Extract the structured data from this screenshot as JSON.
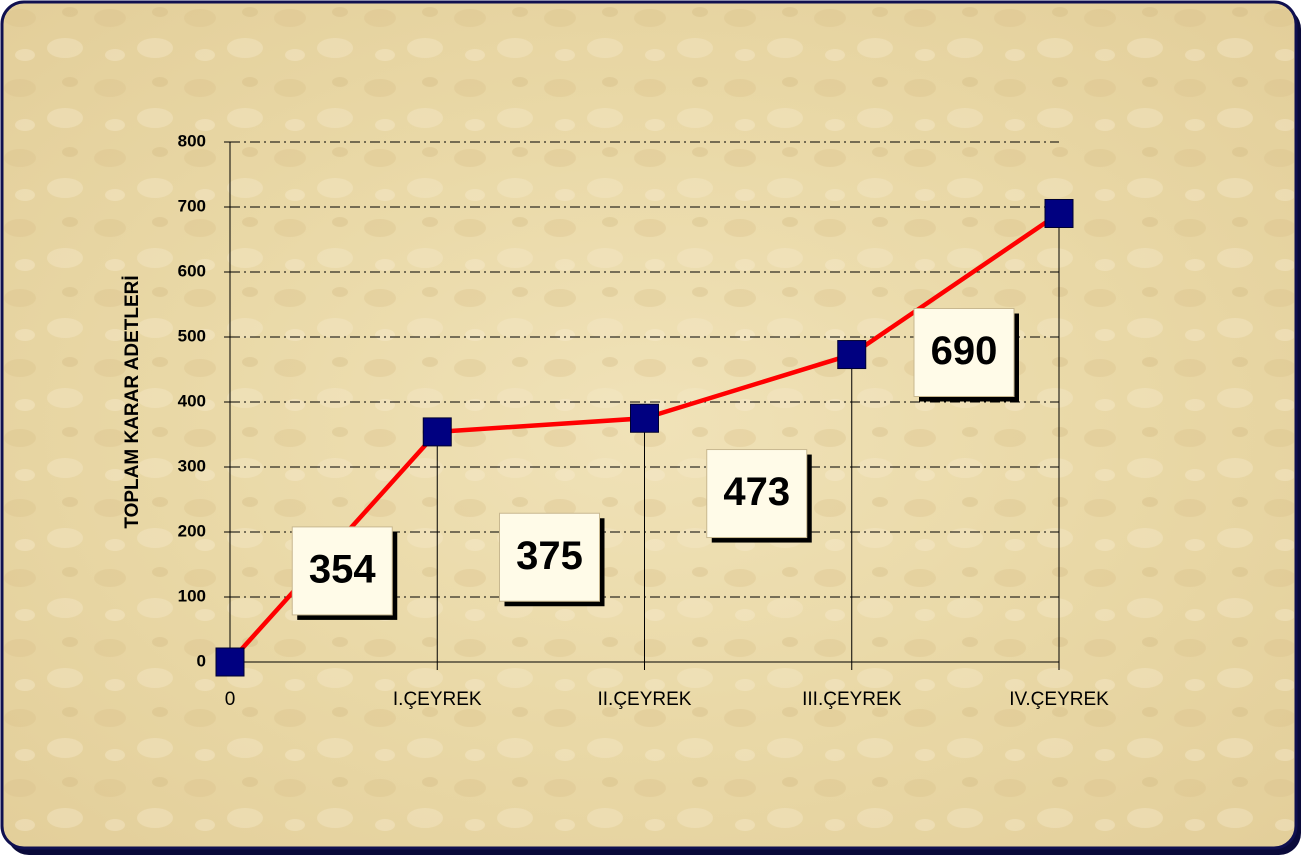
{
  "chart_data": {
    "type": "line",
    "y_axis_label": "TOPLAM KARAR ADETLERİ",
    "categories": [
      "0",
      "I.ÇEYREK",
      "II.ÇEYREK",
      "III.ÇEYREK",
      "IV.ÇEYREK"
    ],
    "series": [
      {
        "name": "TOPLAM KARAR ADETLERİ",
        "color": "#ff0000",
        "marker_color": "#000080",
        "values": [
          0,
          354,
          375,
          473,
          690
        ]
      }
    ],
    "data_labels": [
      null,
      354,
      375,
      473,
      690
    ],
    "ylim": [
      0,
      800
    ],
    "yticks": [
      0,
      100,
      200,
      300,
      400,
      500,
      600,
      700,
      800
    ],
    "grid": true,
    "drop_lines": true
  }
}
